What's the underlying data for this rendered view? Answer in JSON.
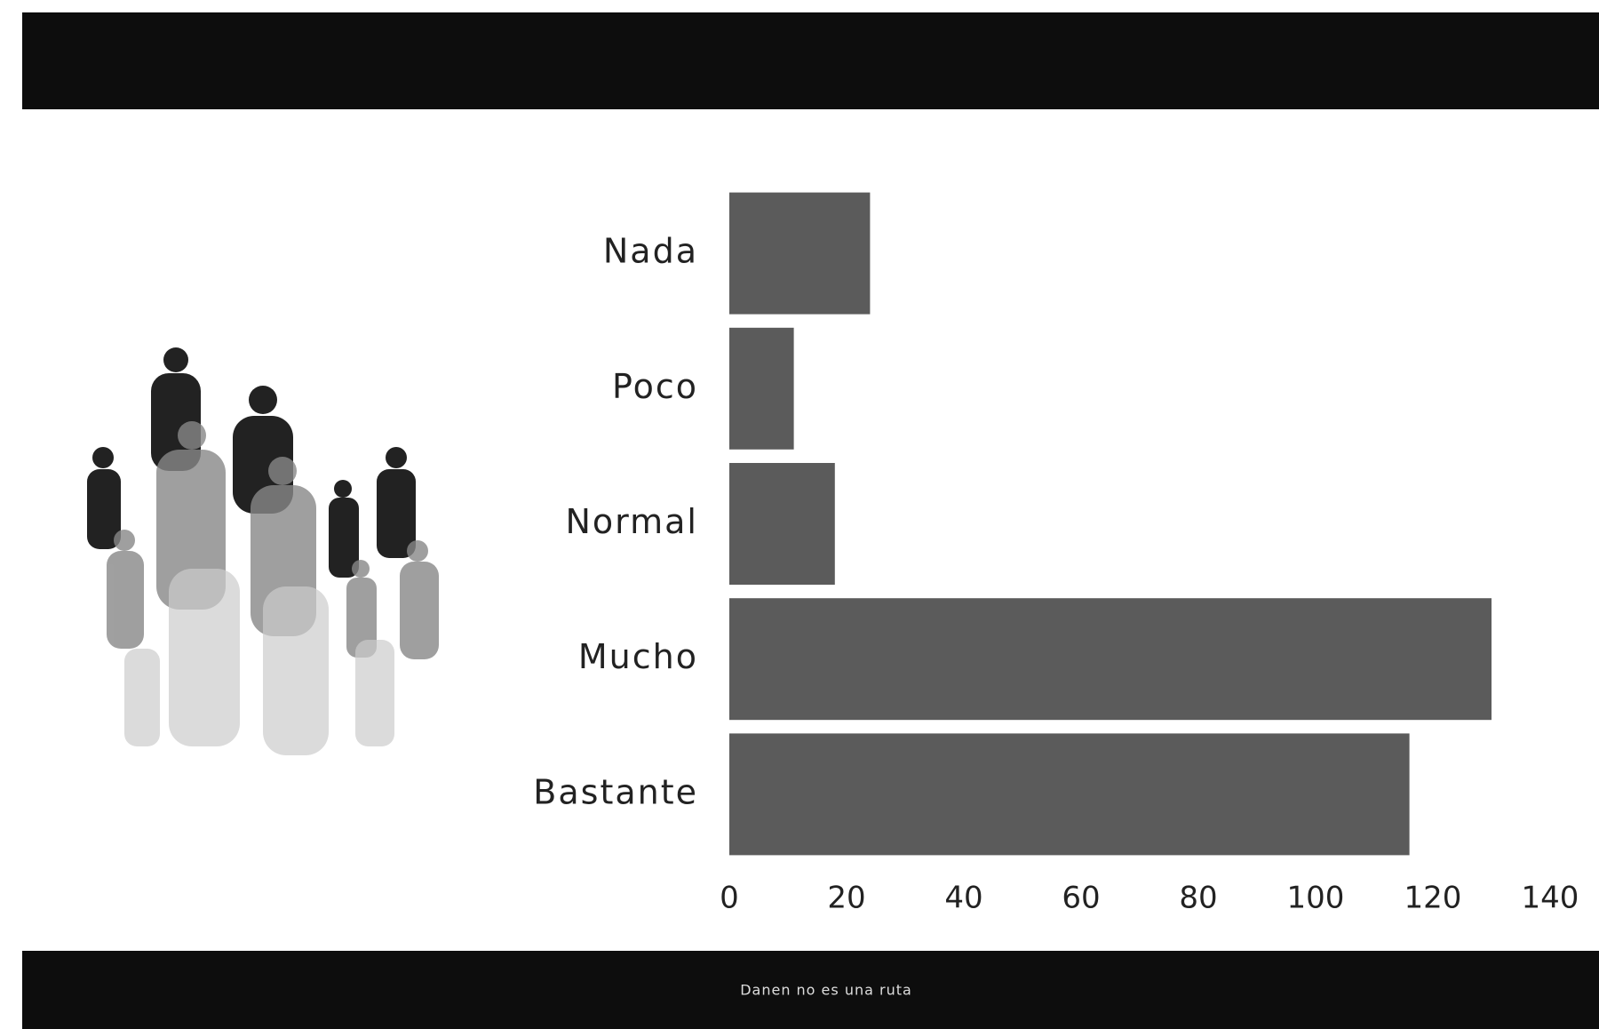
{
  "chart_data": {
    "type": "bar",
    "orientation": "horizontal",
    "categories": [
      "Nada",
      "Poco",
      "Normal",
      "Mucho",
      "Bastante"
    ],
    "values": [
      24,
      11,
      18,
      130,
      116
    ],
    "color": "#5b5b5b",
    "xlim": [
      0,
      140
    ],
    "xticks": [
      0,
      20,
      40,
      60,
      80,
      100,
      120,
      140
    ]
  },
  "footer": {
    "text": "Danen no es una ruta"
  }
}
